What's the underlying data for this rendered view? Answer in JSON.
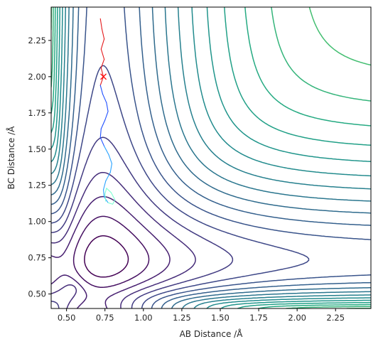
{
  "chart_data": {
    "type": "contour",
    "title": "",
    "xlabel": "AB Distance /Å",
    "ylabel": "BC Distance /Å",
    "xlim": [
      0.4,
      2.48
    ],
    "ylim": [
      0.4,
      2.48
    ],
    "xticks": [
      "0.50",
      "0.75",
      "1.00",
      "1.25",
      "1.50",
      "1.75",
      "2.00",
      "2.25"
    ],
    "yticks": [
      "0.50",
      "0.75",
      "1.00",
      "1.25",
      "1.50",
      "1.75",
      "2.00",
      "2.25"
    ],
    "grid": false,
    "legend": "none",
    "colormap": "viridis",
    "contour_levels": 24,
    "contour_colors": [
      "#440154",
      "#482374",
      "#404387",
      "#345f8d",
      "#29788e",
      "#20908d",
      "#22a884",
      "#44bf70",
      "#79d151",
      "#bade28",
      "#fde725"
    ],
    "trajectory": {
      "start_marker": "x",
      "start": [
        0.74,
        2.0
      ],
      "colors": [
        "#e41a1c",
        "#1f4fff",
        "#2aa3ff",
        "#7fffd4"
      ],
      "points": [
        [
          0.72,
          2.4
        ],
        [
          0.73,
          2.33
        ],
        [
          0.745,
          2.26
        ],
        [
          0.725,
          2.19
        ],
        [
          0.745,
          2.12
        ],
        [
          0.725,
          2.06
        ],
        [
          0.74,
          2.0
        ],
        [
          0.72,
          1.94
        ],
        [
          0.735,
          1.88
        ],
        [
          0.76,
          1.82
        ],
        [
          0.77,
          1.76
        ],
        [
          0.75,
          1.7
        ],
        [
          0.725,
          1.64
        ],
        [
          0.72,
          1.58
        ],
        [
          0.745,
          1.52
        ],
        [
          0.775,
          1.46
        ],
        [
          0.795,
          1.4
        ],
        [
          0.785,
          1.34
        ],
        [
          0.755,
          1.28
        ],
        [
          0.74,
          1.22
        ],
        [
          0.745,
          1.17
        ],
        [
          0.77,
          1.13
        ],
        [
          0.8,
          1.12
        ],
        [
          0.815,
          1.15
        ],
        [
          0.79,
          1.2
        ],
        [
          0.76,
          1.23
        ],
        [
          0.75,
          1.19
        ],
        [
          0.755,
          1.14
        ]
      ]
    }
  }
}
